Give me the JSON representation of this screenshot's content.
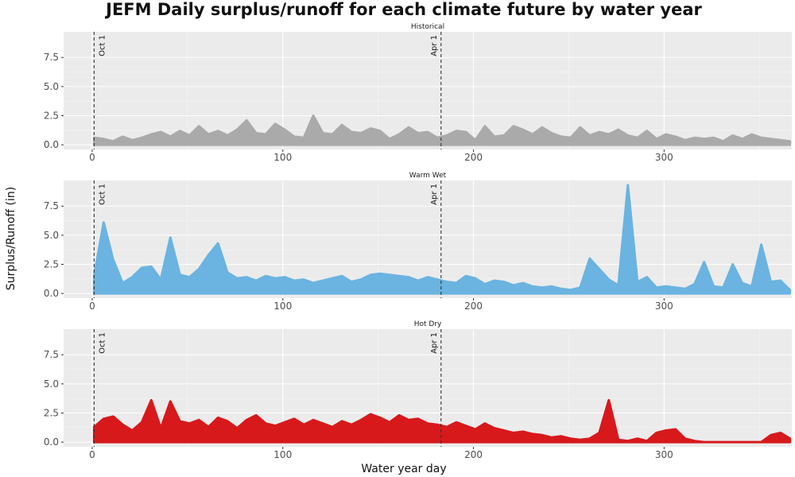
{
  "chart_data": {
    "type": "area",
    "title": "JEFM Daily surplus/runoff for each climate future by water year",
    "xlabel": "Water year day",
    "ylabel": "Surplus/Runoff (in)",
    "xlim": [
      -15,
      367
    ],
    "ylim": [
      -0.4,
      9.7
    ],
    "xticks": [
      0,
      100,
      200,
      300
    ],
    "yticks": [
      "0.0",
      "2.5",
      "5.0",
      "7.5"
    ],
    "ytick_values": [
      0,
      2.5,
      5,
      7.5
    ],
    "vlines": [
      {
        "x": 1,
        "label": "Oct 1"
      },
      {
        "x": 183,
        "label": "Apr 1"
      }
    ],
    "panel_background": "#ebebeb",
    "grid": true,
    "series": [
      {
        "name": "Historical",
        "color": "#aaaaaa",
        "x_step": 5,
        "values": [
          0.6,
          0.5,
          0.3,
          0.7,
          0.4,
          0.6,
          0.9,
          1.1,
          0.7,
          1.2,
          0.8,
          1.6,
          0.9,
          1.2,
          0.8,
          1.3,
          2.1,
          1.0,
          0.9,
          1.8,
          1.3,
          0.7,
          0.6,
          2.5,
          1.0,
          0.9,
          1.7,
          1.1,
          1.0,
          1.4,
          1.2,
          0.5,
          0.9,
          1.5,
          1.0,
          1.1,
          0.6,
          0.8,
          1.2,
          1.1,
          0.4,
          1.6,
          0.7,
          0.8,
          1.6,
          1.3,
          0.9,
          1.5,
          1.0,
          0.7,
          0.6,
          1.5,
          0.8,
          1.1,
          0.9,
          1.3,
          0.8,
          0.6,
          1.2,
          0.5,
          0.9,
          0.7,
          0.4,
          0.6,
          0.5,
          0.6,
          0.3,
          0.8,
          0.5,
          0.9,
          0.6,
          0.5,
          0.4,
          0.3
        ]
      },
      {
        "name": "Warm Wet",
        "color": "#6bb3e0",
        "x_step": 5,
        "values": [
          1.5,
          6.1,
          2.9,
          0.9,
          1.4,
          2.2,
          2.3,
          1.2,
          4.8,
          1.6,
          1.4,
          2.1,
          3.3,
          4.3,
          1.8,
          1.3,
          1.4,
          1.1,
          1.5,
          1.3,
          1.4,
          1.1,
          1.2,
          0.9,
          1.1,
          1.3,
          1.5,
          1.0,
          1.2,
          1.6,
          1.7,
          1.6,
          1.5,
          1.4,
          1.1,
          1.4,
          1.2,
          1.0,
          0.9,
          1.5,
          1.3,
          0.8,
          1.1,
          1.0,
          0.7,
          0.9,
          0.6,
          0.5,
          0.6,
          0.4,
          0.3,
          0.5,
          3.0,
          2.1,
          1.2,
          0.7,
          9.3,
          1.0,
          1.4,
          0.5,
          0.6,
          0.5,
          0.4,
          0.8,
          2.7,
          0.6,
          0.5,
          2.5,
          0.9,
          0.6,
          4.2,
          1.0,
          1.1,
          0.3
        ]
      },
      {
        "name": "Hot Dry",
        "color": "#d7191c",
        "x_step": 5,
        "values": [
          1.3,
          2.0,
          2.2,
          1.5,
          1.0,
          1.7,
          3.6,
          1.2,
          3.5,
          1.8,
          1.6,
          1.9,
          1.3,
          2.1,
          1.8,
          1.2,
          1.9,
          2.3,
          1.6,
          1.4,
          1.7,
          2.0,
          1.5,
          1.9,
          1.6,
          1.3,
          1.8,
          1.5,
          1.9,
          2.4,
          2.1,
          1.7,
          2.3,
          1.9,
          2.0,
          1.6,
          1.5,
          1.3,
          1.7,
          1.4,
          1.1,
          1.6,
          1.2,
          1.0,
          0.8,
          0.9,
          0.7,
          0.6,
          0.4,
          0.5,
          0.3,
          0.2,
          0.3,
          0.8,
          3.6,
          0.2,
          0.1,
          0.3,
          0.1,
          0.8,
          1.0,
          1.1,
          0.3,
          0.1,
          0.0,
          0.0,
          0.0,
          0.0,
          0.0,
          0.0,
          0.0,
          0.6,
          0.8,
          0.3
        ]
      }
    ]
  }
}
